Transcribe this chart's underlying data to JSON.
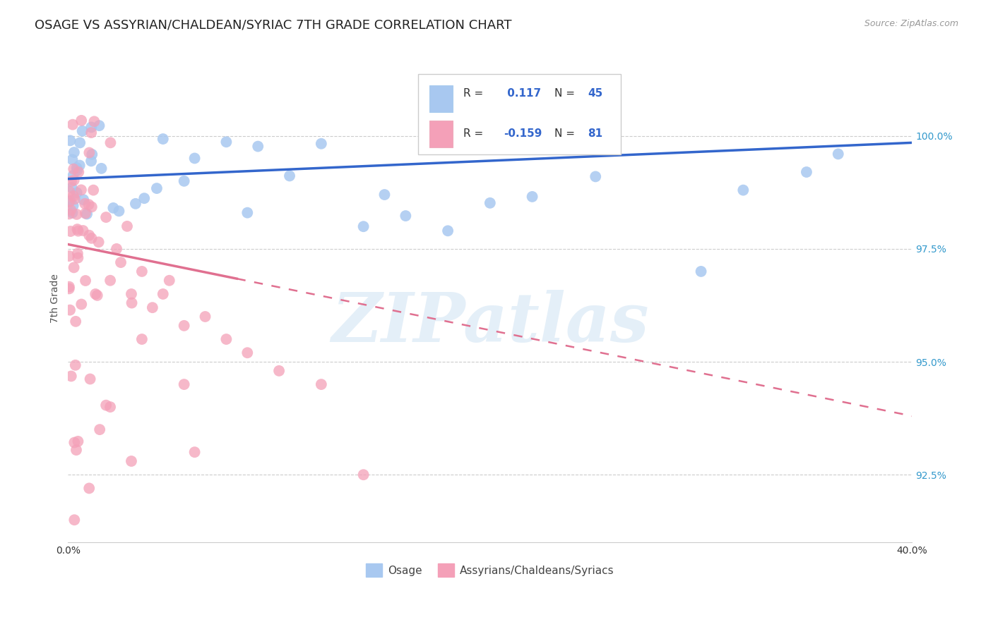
{
  "title": "OSAGE VS ASSYRIAN/CHALDEAN/SYRIAC 7TH GRADE CORRELATION CHART",
  "source": "Source: ZipAtlas.com",
  "ylabel": "7th Grade",
  "watermark": "ZIPatlas",
  "xlim": [
    0.0,
    40.0
  ],
  "ylim": [
    91.0,
    101.8
  ],
  "yticks_right": [
    92.5,
    95.0,
    97.5,
    100.0
  ],
  "yticklabels_right": [
    "92.5%",
    "95.0%",
    "97.5%",
    "100.0%"
  ],
  "legend_R1": " 0.117",
  "legend_N1": "45",
  "legend_R2": "-0.159",
  "legend_N2": "81",
  "legend_label1": "Osage",
  "legend_label2": "Assyrians/Chaldeans/Syriacs",
  "blue_color": "#A8C8F0",
  "pink_color": "#F4A0B8",
  "line_blue": "#3366CC",
  "line_pink": "#E07090",
  "title_fontsize": 13,
  "axis_label_fontsize": 10,
  "tick_fontsize": 10,
  "blue_line_x0": 0.0,
  "blue_line_y0": 99.05,
  "blue_line_x1": 40.0,
  "blue_line_y1": 99.85,
  "pink_line_x0": 0.0,
  "pink_line_y0": 97.6,
  "pink_line_x1": 40.0,
  "pink_line_y1": 93.8,
  "pink_solid_end": 8.0
}
